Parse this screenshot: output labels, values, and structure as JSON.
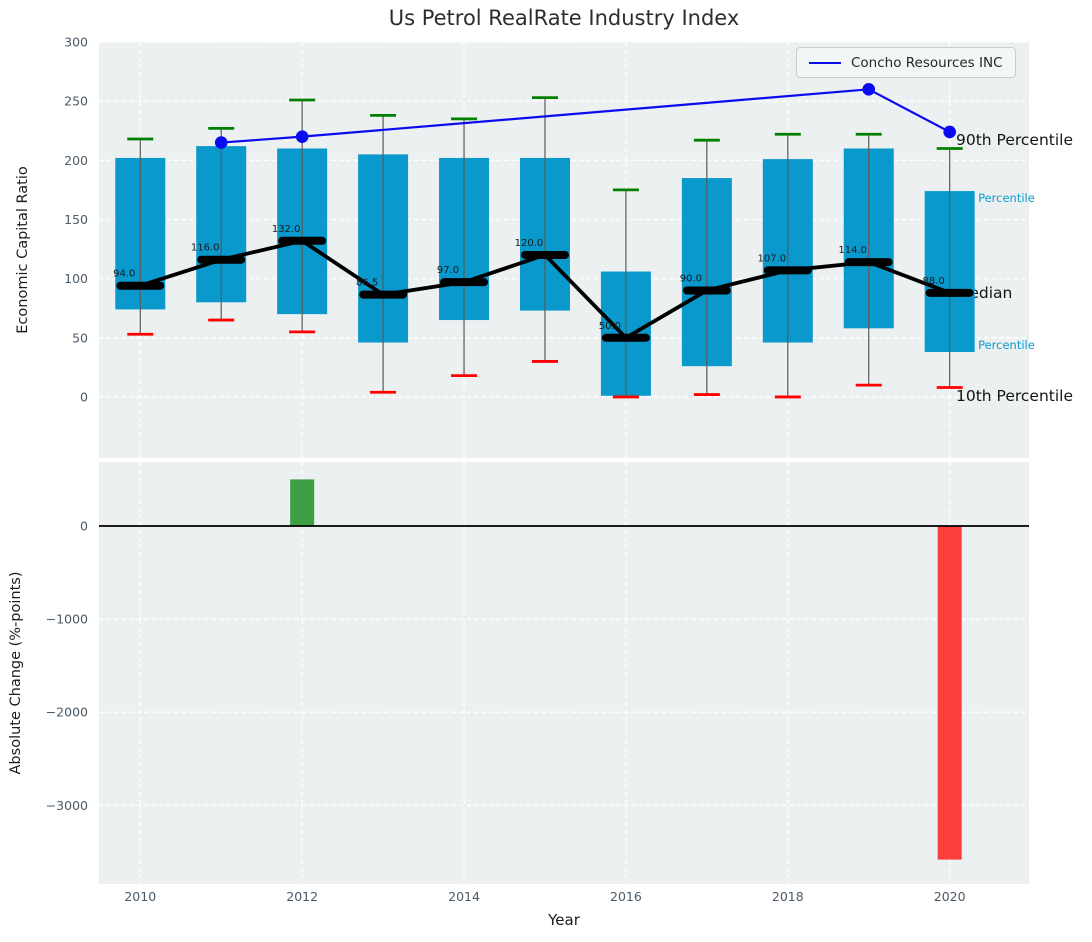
{
  "title": "Us Petrol RealRate Industry Index",
  "legend": {
    "label": "Concho Resources INC"
  },
  "annotations": {
    "p90": "90th Percentile",
    "p75": "75th Percentile",
    "median": "Median",
    "p25": "25th Percentile",
    "p10": "10th Percentile"
  },
  "colors": {
    "box": "#0999cc",
    "whisker": "#5a5a5a",
    "cap_high": "#008000",
    "cap_low": "#ff0000",
    "median": "#000000",
    "company_line": "#0b0bf0",
    "panel_bg": "#ecf0f1",
    "grid": "#ffffff",
    "tick_text": "#4b5a68",
    "annotation_cyan": "#0d9bcd",
    "bar_up": "#3da045",
    "bar_down": "#fa3d3d",
    "zero_line": "#000000"
  },
  "chart_data": [
    {
      "type": "boxplot",
      "title": "Us Petrol RealRate Industry Index",
      "ylabel": "Economic Capital Ratio",
      "xlim": [
        2009.49,
        2020.98
      ],
      "ylim": [
        -51.6,
        300
      ],
      "grid": true,
      "legend_position": "upper right",
      "yticks": [
        {
          "v": 0,
          "label": "0"
        },
        {
          "v": 50,
          "label": "50"
        },
        {
          "v": 100,
          "label": "100"
        },
        {
          "v": 150,
          "label": "150"
        },
        {
          "v": 200,
          "label": "200"
        },
        {
          "v": 250,
          "label": "250"
        },
        {
          "v": 300,
          "label": "300"
        }
      ],
      "xgrid_years": [
        2010,
        2012,
        2014,
        2016,
        2018,
        2020
      ],
      "boxes": [
        {
          "year": 2010,
          "p10": 53,
          "p25": 74,
          "median": 94.0,
          "p75": 202,
          "p90": 218,
          "label": "94.0"
        },
        {
          "year": 2011,
          "p10": 65,
          "p25": 80,
          "median": 116.0,
          "p75": 212,
          "p90": 227,
          "label": "116.0"
        },
        {
          "year": 2012,
          "p10": 55,
          "p25": 70,
          "median": 132.0,
          "p75": 210,
          "p90": 251,
          "label": "132.0"
        },
        {
          "year": 2013,
          "p10": 4,
          "p25": 46,
          "median": 86.5,
          "p75": 205,
          "p90": 238,
          "label": "86.5"
        },
        {
          "year": 2014,
          "p10": 18,
          "p25": 65,
          "median": 97.0,
          "p75": 202,
          "p90": 235,
          "label": "97.0"
        },
        {
          "year": 2015,
          "p10": 30,
          "p25": 73,
          "median": 120.0,
          "p75": 202,
          "p90": 253,
          "label": "120.0"
        },
        {
          "year": 2016,
          "p10": 0,
          "p25": 1,
          "median": 50.0,
          "p75": 106,
          "p90": 175,
          "label": "50.0"
        },
        {
          "year": 2017,
          "p10": 2,
          "p25": 26,
          "median": 90.0,
          "p75": 185,
          "p90": 217,
          "label": "90.0"
        },
        {
          "year": 2018,
          "p10": 0,
          "p25": 46,
          "median": 107.0,
          "p75": 201,
          "p90": 222,
          "label": "107.0"
        },
        {
          "year": 2019,
          "p10": 10,
          "p25": 58,
          "median": 114.0,
          "p75": 210,
          "p90": 222,
          "label": "114.0"
        },
        {
          "year": 2020,
          "p10": 8,
          "p25": 38,
          "median": 88.0,
          "p75": 174,
          "p90": 210,
          "label": "88.0"
        }
      ],
      "series": [
        {
          "name": "Concho Resources INC",
          "points": [
            {
              "x": 2011,
              "y": 215
            },
            {
              "x": 2012,
              "y": 220
            },
            {
              "x": 2019,
              "y": 260
            },
            {
              "x": 2020,
              "y": 224
            }
          ]
        }
      ]
    },
    {
      "type": "bar",
      "ylabel": "Absolute Change (%-points)",
      "xlabel": "Year",
      "xlim": [
        2009.49,
        2020.98
      ],
      "ylim": [
        -3845,
        687
      ],
      "grid": true,
      "yticks": [
        {
          "v": 0,
          "label": "0"
        },
        {
          "v": -1000,
          "label": "−1000"
        },
        {
          "v": -2000,
          "label": "−2000"
        },
        {
          "v": -3000,
          "label": "−3000"
        }
      ],
      "xticks": [
        {
          "v": 2010,
          "label": "2010"
        },
        {
          "v": 2012,
          "label": "2012"
        },
        {
          "v": 2014,
          "label": "2014"
        },
        {
          "v": 2016,
          "label": "2016"
        },
        {
          "v": 2018,
          "label": "2018"
        },
        {
          "v": 2020,
          "label": "2020"
        }
      ],
      "bars": [
        {
          "year": 2012,
          "value": 500,
          "direction": "up"
        },
        {
          "year": 2020,
          "value": -3583,
          "direction": "down"
        }
      ]
    }
  ]
}
